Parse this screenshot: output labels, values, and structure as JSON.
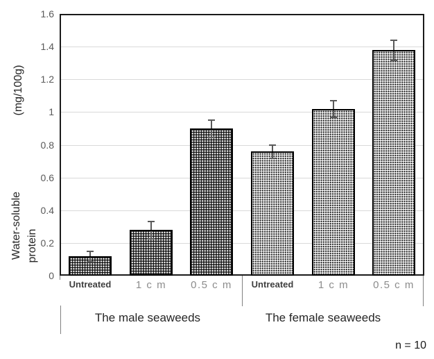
{
  "figure": {
    "note": "n = 10"
  },
  "chart_data": {
    "type": "bar",
    "title": "",
    "ylabel_line1": "Water-soluble",
    "ylabel_line2": "protein",
    "ylabel_unit": "(mg/100g)",
    "ylabel_full": "Water-soluble protein (mg/100g)",
    "xlabel": "",
    "ylim": [
      0,
      1.6
    ],
    "ytick_step": 0.2,
    "yticks": [
      0,
      0.2,
      0.4,
      0.6,
      0.8,
      1,
      1.2,
      1.4,
      1.6
    ],
    "ytick_labels": [
      "0",
      "0.2",
      "0.4",
      "0.6",
      "0.8",
      "1",
      "1.2",
      "1.4",
      "1.6"
    ],
    "grid": true,
    "legend": "none",
    "annotation": "n = 10",
    "groups": [
      {
        "id": "male",
        "label": "The male seaweeds",
        "pattern": "hatch-dark",
        "bars": [
          {
            "category": "Untreated",
            "value": 0.12,
            "error": 0.03
          },
          {
            "category": "1 c m",
            "value": 0.28,
            "error": 0.05
          },
          {
            "category": "0.5 c m",
            "value": 0.9,
            "error": 0.05
          }
        ]
      },
      {
        "id": "female",
        "label": "The female seaweeds",
        "pattern": "dots-light",
        "bars": [
          {
            "category": "Untreated",
            "value": 0.76,
            "error": 0.04
          },
          {
            "category": "1 c m",
            "value": 1.02,
            "error": 0.05
          },
          {
            "category": "0.5 c m",
            "value": 1.38,
            "error": 0.06
          }
        ]
      }
    ],
    "colors": {
      "axis": "#1a1a1a",
      "grid": "#d9d9d9",
      "error_bar": "#595959",
      "divider": "#808080",
      "tick_text": "#595959",
      "category_muted": "#8c8c8c",
      "category_emphasis": "#3f3f3f",
      "text": "#262626"
    }
  }
}
